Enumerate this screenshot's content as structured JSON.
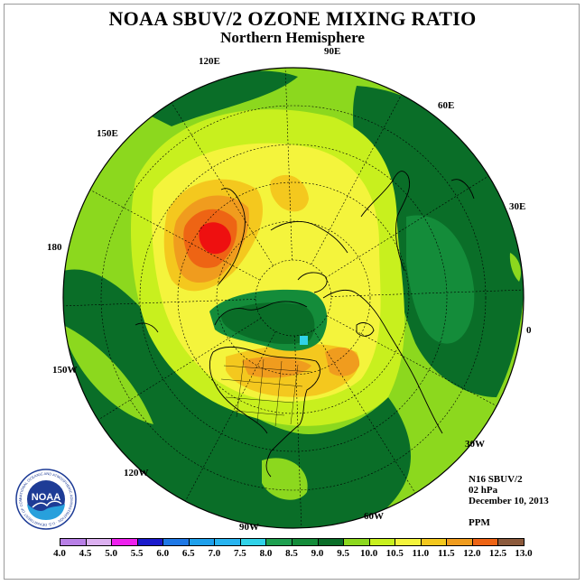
{
  "title": "NOAA SBUV/2 OZONE MIXING RATIO",
  "subtitle": "Northern Hemisphere",
  "longitude_labels": [
    "90E",
    "60E",
    "30E",
    "0",
    "30W",
    "60W",
    "90W",
    "120W",
    "150W",
    "180",
    "150E",
    "120E"
  ],
  "info": {
    "instrument": "N16 SBUV/2",
    "level": "02 hPa",
    "date": "December 10, 2013",
    "units": "PPM"
  },
  "logo": {
    "text": "NOAA",
    "ring_text": "NATIONAL OCEANIC AND ATMOSPHERIC ADMINISTRATION · U.S. DEPARTMENT OF COMMERCE"
  },
  "colorbar": {
    "ticks": [
      "4.0",
      "4.5",
      "5.0",
      "5.5",
      "6.0",
      "6.5",
      "7.0",
      "7.5",
      "8.0",
      "8.5",
      "9.0",
      "9.5",
      "10.0",
      "10.5",
      "11.0",
      "11.5",
      "12.0",
      "12.5",
      "13.0"
    ],
    "colors": [
      "#b87fe6",
      "#dcb0f0",
      "#ee20ee",
      "#1a1acc",
      "#1e78e6",
      "#1ea0ec",
      "#28b4f0",
      "#30d2e8",
      "#1ea050",
      "#148c3a",
      "#0a6e28",
      "#8cd81e",
      "#c8f01e",
      "#f4f43c",
      "#f4c81e",
      "#f09c1e",
      "#ee6414",
      "#ee1010"
    ],
    "top_color": "#8c5a3c"
  }
}
